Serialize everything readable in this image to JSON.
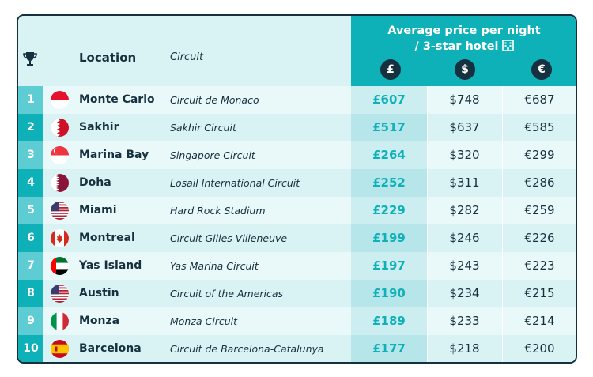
{
  "header": {
    "trophy_icon": "trophy-icon",
    "location_label": "Location",
    "circuit_label": "Circuit",
    "price_title_line1": "Average price per night",
    "price_title_line2": "/ 3-star hotel",
    "hotel_icon": "hotel-icon",
    "currencies": [
      "£",
      "$",
      "€"
    ]
  },
  "colors": {
    "accent": "#0fb1b8",
    "accent_light": "#5dcdd3",
    "dark": "#15303e",
    "row_light": "#e9f8f9",
    "row_alt": "#d9f2f4"
  },
  "rows": [
    {
      "rank": "1",
      "flag": "monaco",
      "location": "Monte Carlo",
      "circuit": "Circuit de Monaco",
      "gbp": "£607",
      "usd": "$748",
      "eur": "€687"
    },
    {
      "rank": "2",
      "flag": "bahrain",
      "location": "Sakhir",
      "circuit": "Sakhir Circuit",
      "gbp": "£517",
      "usd": "$637",
      "eur": "€585"
    },
    {
      "rank": "3",
      "flag": "singapore",
      "location": "Marina Bay",
      "circuit": "Singapore Circuit",
      "gbp": "£264",
      "usd": "$320",
      "eur": "€299"
    },
    {
      "rank": "4",
      "flag": "qatar",
      "location": "Doha",
      "circuit": "Losail International Circuit",
      "gbp": "£252",
      "usd": "$311",
      "eur": "€286"
    },
    {
      "rank": "5",
      "flag": "usa",
      "location": "Miami",
      "circuit": "Hard Rock Stadium",
      "gbp": "£229",
      "usd": "$282",
      "eur": "€259"
    },
    {
      "rank": "6",
      "flag": "canada",
      "location": "Montreal",
      "circuit": "Circuit Gilles-Villeneuve",
      "gbp": "£199",
      "usd": "$246",
      "eur": "€226"
    },
    {
      "rank": "7",
      "flag": "uae",
      "location": "Yas Island",
      "circuit": "Yas Marina Circuit",
      "gbp": "£197",
      "usd": "$243",
      "eur": "€223"
    },
    {
      "rank": "8",
      "flag": "usa",
      "location": "Austin",
      "circuit": "Circuit of the Americas",
      "gbp": "£190",
      "usd": "$234",
      "eur": "€215"
    },
    {
      "rank": "9",
      "flag": "italy",
      "location": "Monza",
      "circuit": "Monza Circuit",
      "gbp": "£189",
      "usd": "$233",
      "eur": "€214"
    },
    {
      "rank": "10",
      "flag": "spain",
      "location": "Barcelona",
      "circuit": "Circuit de Barcelona-Catalunya",
      "gbp": "£177",
      "usd": "$218",
      "eur": "€200"
    }
  ]
}
